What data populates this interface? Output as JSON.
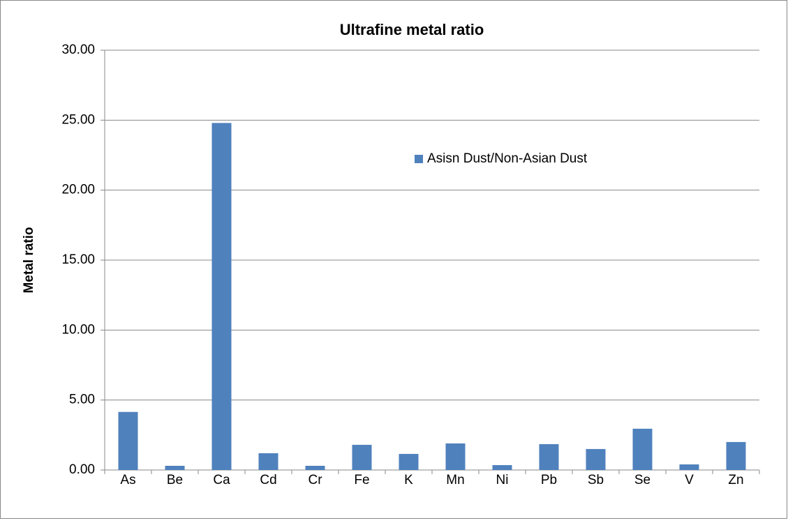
{
  "chart_data": {
    "type": "bar",
    "title": "Ultrafine metal ratio",
    "y_label": "Metal ratio",
    "categories": [
      "As",
      "Be",
      "Ca",
      "Cd",
      "Cr",
      "Fe",
      "K",
      "Mn",
      "Ni",
      "Pb",
      "Sb",
      "Se",
      "V",
      "Zn"
    ],
    "series": [
      {
        "name": "Asisn Dust/Non-Asian Dust",
        "color": "#4f81bd",
        "values": [
          4.15,
          0.3,
          24.8,
          1.2,
          0.3,
          1.8,
          1.15,
          1.9,
          0.35,
          1.85,
          1.5,
          2.95,
          0.4,
          2.0
        ]
      }
    ],
    "ylim": [
      0,
      30
    ],
    "yticks": [
      {
        "value": 0,
        "label": "0.00"
      },
      {
        "value": 5,
        "label": "5.00"
      },
      {
        "value": 10,
        "label": "10.00"
      },
      {
        "value": 15,
        "label": "15.00"
      },
      {
        "value": 20,
        "label": "20.00"
      },
      {
        "value": 25,
        "label": "25.00"
      },
      {
        "value": 30,
        "label": "30.00"
      }
    ],
    "grid": true
  }
}
